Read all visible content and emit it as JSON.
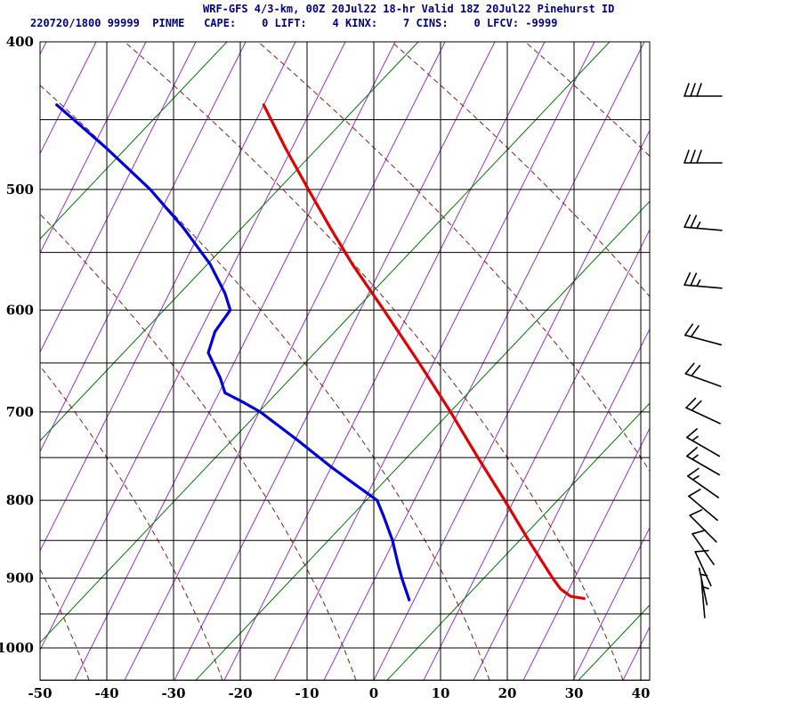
{
  "header": {
    "title": "WRF-GFS 4/3-km, 00Z 20Jul22 18-hr Valid 18Z 20Jul22 Pinehurst ID",
    "info_line": "220720/1800 99999  PINME   CAPE:    0 LIFT:    4 KINX:    7 CINS:    0 LFCV: -9999",
    "title_color": "#000080"
  },
  "station": {
    "datetime": "220720/1800",
    "number": "99999",
    "id": "PINME",
    "name": "Pinehurst ID"
  },
  "indices": {
    "CAPE": 0,
    "LIFT": 4,
    "KINX": 7,
    "CINS": 0,
    "LFCV": -9999
  },
  "chart_data": {
    "type": "line",
    "variant": "skew-t-log-p-sounding",
    "note": "x values of profile points are positions read against the bottom temperature axis (deg C); pressures in hPa",
    "x_axis": {
      "min": -50,
      "max": 40,
      "ticks": [
        -50,
        -40,
        -30,
        -20,
        -10,
        0,
        10,
        20,
        30,
        40
      ]
    },
    "y_axis": {
      "unit": "hPa",
      "top": 400,
      "bottom": 1050,
      "scale": "log",
      "labeled_ticks": [
        400,
        500,
        600,
        700,
        800,
        900,
        1000
      ],
      "gridline_step": 50
    },
    "series": [
      {
        "name": "temperature",
        "color": "#e00000",
        "points": [
          [
            440,
            -16.5
          ],
          [
            470,
            -13.2
          ],
          [
            500,
            -9.8
          ],
          [
            530,
            -6.5
          ],
          [
            560,
            -3.2
          ],
          [
            600,
            1.5
          ],
          [
            650,
            6.8
          ],
          [
            700,
            11.5
          ],
          [
            750,
            15.6
          ],
          [
            800,
            19.6
          ],
          [
            850,
            23.2
          ],
          [
            900,
            26.8
          ],
          [
            915,
            28.0
          ],
          [
            925,
            29.5
          ],
          [
            928,
            31.5
          ]
        ]
      },
      {
        "name": "dewpoint",
        "color": "#0000dd",
        "points": [
          [
            440,
            -47.5
          ],
          [
            470,
            -40.0
          ],
          [
            500,
            -33.5
          ],
          [
            530,
            -28.5
          ],
          [
            560,
            -24.5
          ],
          [
            585,
            -22.3
          ],
          [
            600,
            -21.5
          ],
          [
            620,
            -23.8
          ],
          [
            640,
            -24.8
          ],
          [
            665,
            -23.0
          ],
          [
            680,
            -22.3
          ],
          [
            690,
            -19.5
          ],
          [
            700,
            -17.0
          ],
          [
            730,
            -11.5
          ],
          [
            760,
            -6.5
          ],
          [
            780,
            -3.0
          ],
          [
            800,
            0.5
          ],
          [
            820,
            1.5
          ],
          [
            850,
            2.8
          ],
          [
            880,
            3.6
          ],
          [
            900,
            4.2
          ],
          [
            930,
            5.3
          ]
        ]
      }
    ],
    "wind_barbs": {
      "color": "#000000",
      "x_center": 790,
      "barbs": [
        {
          "y": 108,
          "angle": 0,
          "speed_kt": 30
        },
        {
          "y": 183,
          "angle": 0,
          "speed_kt": 30
        },
        {
          "y": 257,
          "angle": 5,
          "speed_kt": 25
        },
        {
          "y": 322,
          "angle": 5,
          "speed_kt": 25
        },
        {
          "y": 382,
          "angle": 15,
          "speed_kt": 20
        },
        {
          "y": 427,
          "angle": 20,
          "speed_kt": 20
        },
        {
          "y": 467,
          "angle": 25,
          "speed_kt": 20
        },
        {
          "y": 502,
          "angle": 30,
          "speed_kt": 15
        },
        {
          "y": 523,
          "angle": 30,
          "speed_kt": 15
        },
        {
          "y": 547,
          "angle": 35,
          "speed_kt": 15
        },
        {
          "y": 571,
          "angle": 40,
          "speed_kt": 10
        },
        {
          "y": 594,
          "angle": 45,
          "speed_kt": 10
        },
        {
          "y": 617,
          "angle": 55,
          "speed_kt": 10
        },
        {
          "y": 639,
          "angle": 65,
          "speed_kt": 10
        },
        {
          "y": 659,
          "angle": 78,
          "speed_kt": 5
        },
        {
          "y": 673,
          "angle": 85,
          "speed_kt": 5
        }
      ]
    },
    "background": {
      "grid_color": "#000000",
      "isotherm_color": "#9932cc",
      "moist_adiabat_color": "#007700",
      "dry_adiabat_color": "#8b1a1a"
    }
  }
}
